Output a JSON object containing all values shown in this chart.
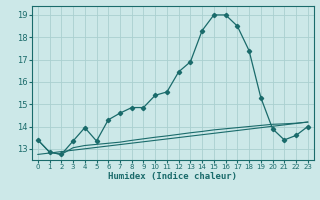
{
  "xlabel": "Humidex (Indice chaleur)",
  "ylabel": "",
  "bg_color": "#cce8e8",
  "grid_color": "#aad0d0",
  "line_color": "#1a6b6b",
  "xlim": [
    -0.5,
    23.5
  ],
  "ylim": [
    12.5,
    19.4
  ],
  "yticks": [
    13,
    14,
    15,
    16,
    17,
    18,
    19
  ],
  "xticks": [
    0,
    1,
    2,
    3,
    4,
    5,
    6,
    7,
    8,
    9,
    10,
    11,
    12,
    13,
    14,
    15,
    16,
    17,
    18,
    19,
    20,
    21,
    22,
    23
  ],
  "line1_x": [
    0,
    1,
    2,
    3,
    4,
    5,
    6,
    7,
    8,
    9,
    10,
    11,
    12,
    13,
    14,
    15,
    16,
    17,
    18,
    19,
    20,
    21,
    22,
    23
  ],
  "line1_y": [
    13.4,
    12.85,
    12.75,
    13.35,
    13.95,
    13.35,
    14.3,
    14.6,
    14.85,
    14.85,
    15.4,
    15.55,
    16.45,
    16.9,
    18.3,
    19.0,
    19.0,
    18.5,
    17.4,
    15.3,
    13.9,
    13.4,
    13.6,
    14.0
  ],
  "line2_x": [
    0,
    1,
    2,
    3,
    4,
    5,
    6,
    7,
    8,
    9,
    10,
    11,
    12,
    13,
    14,
    15,
    16,
    17,
    18,
    19,
    20,
    21,
    22,
    23
  ],
  "line2_y": [
    13.4,
    12.85,
    12.75,
    13.05,
    13.15,
    13.2,
    13.25,
    13.3,
    13.38,
    13.45,
    13.52,
    13.58,
    13.65,
    13.72,
    13.78,
    13.85,
    13.9,
    13.95,
    14.0,
    14.05,
    14.1,
    14.12,
    14.15,
    14.2
  ],
  "line3_x": [
    0,
    23
  ],
  "line3_y": [
    12.75,
    14.2
  ]
}
